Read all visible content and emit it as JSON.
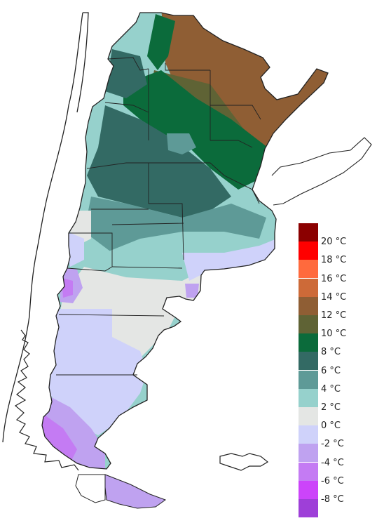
{
  "legend": {
    "unit": "°C",
    "colors": [
      "#8B0000",
      "#FF0000",
      "#FF6A3D",
      "#CD6A38",
      "#8F5E34",
      "#5F6335",
      "#0B6B3B",
      "#336A64",
      "#5E9A97",
      "#96D1CC",
      "#E4E6E4",
      "#CFD2FA",
      "#BFA2F0",
      "#C47BF3",
      "#CC44FA",
      "#9E3FD8"
    ],
    "labels": [
      "20 °C",
      "18 °C",
      "16 °C",
      "14 °C",
      "12 °C",
      "10 °C",
      "8 °C",
      "6 °C",
      "4 °C",
      "2 °C",
      "0 °C",
      "-2 °C",
      "-4 °C",
      "-6 °C",
      "-8 °C"
    ]
  }
}
